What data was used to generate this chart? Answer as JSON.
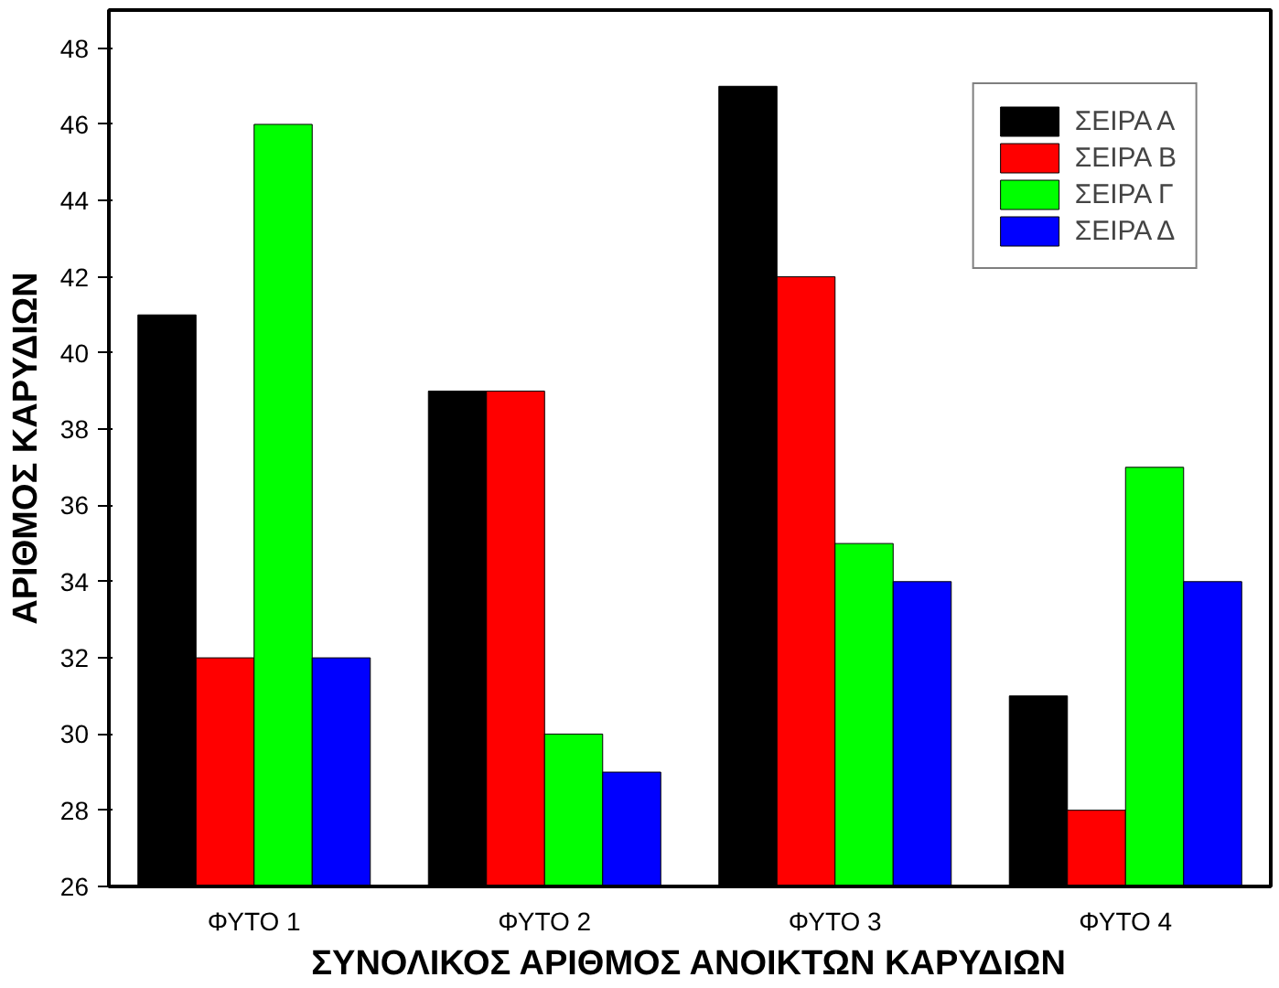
{
  "chart_data": {
    "type": "bar",
    "xlabel": "ΣΥΝΟΛΙΚΟΣ ΑΡΙΘΜΟΣ ΑΝΟΙΚΤΩΝ ΚΑΡΥΔΙΩΝ",
    "ylabel": "ΑΡΙΘΜΟΣ ΚΑΡΥΔΙΩΝ",
    "categories": [
      "ΦΥΤΟ 1",
      "ΦΥΤΟ 2",
      "ΦΥΤΟ 3",
      "ΦΥΤΟ 4"
    ],
    "series": [
      {
        "name": "ΣΕΙΡΑ Α",
        "color": "#000000",
        "values": [
          41,
          39,
          47,
          31
        ]
      },
      {
        "name": "ΣΕΙΡΑ Β",
        "color": "#ff0000",
        "values": [
          32,
          39,
          42,
          28
        ]
      },
      {
        "name": "ΣΕΙΡΑ Γ",
        "color": "#00ff00",
        "values": [
          46,
          30,
          35,
          37
        ]
      },
      {
        "name": "ΣΕΙΡΑ Δ",
        "color": "#0000ff",
        "values": [
          32,
          29,
          34,
          34
        ]
      }
    ],
    "ylim": [
      26,
      49
    ],
    "yticks": [
      26,
      28,
      30,
      32,
      34,
      36,
      38,
      40,
      42,
      44,
      46,
      48
    ],
    "grid": false,
    "legend": "top right"
  }
}
